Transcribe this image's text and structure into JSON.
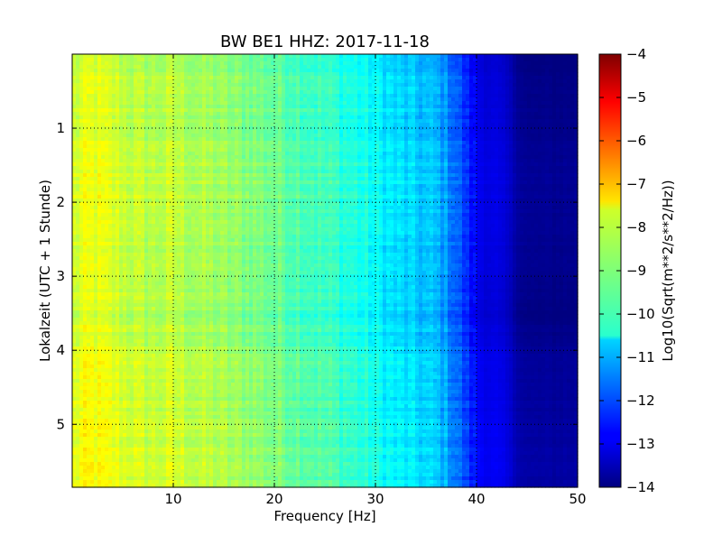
{
  "chart_data": {
    "type": "heatmap",
    "title": "BW BE1 HHZ: 2017-11-18",
    "xlabel": "Frequency [Hz]",
    "ylabel": "Lokalzeit (UTC + 1 Stunde)",
    "xlim": [
      0,
      50
    ],
    "ylim": [
      5.85,
      0.0
    ],
    "xticks": [
      10,
      20,
      30,
      40,
      50
    ],
    "yticks": [
      1,
      2,
      3,
      4,
      5
    ],
    "grid": true,
    "colormap": "jet",
    "colorbar": {
      "label": "Log10(Sqrt(m**2/s**2/Hz))",
      "min": -14,
      "max": -4,
      "ticks": [
        -4,
        -5,
        -6,
        -7,
        -8,
        -9,
        -10,
        -11,
        -12,
        -13,
        -14
      ]
    },
    "frequency_profile": {
      "freq_hz": [
        0,
        1,
        2,
        4,
        6,
        8,
        10,
        12,
        14,
        16,
        18,
        20,
        22,
        24,
        26,
        28,
        30,
        32,
        34,
        36,
        37,
        38,
        39,
        40,
        41,
        42,
        43,
        44,
        45,
        50
      ],
      "log10_psd": [
        -8.4,
        -8.2,
        -8.1,
        -8.3,
        -8.5,
        -8.6,
        -8.5,
        -8.7,
        -8.8,
        -9.0,
        -9.1,
        -9.3,
        -9.5,
        -9.7,
        -9.9,
        -10.1,
        -10.4,
        -10.7,
        -10.9,
        -11.1,
        -11.4,
        -11.9,
        -12.5,
        -13.0,
        -13.2,
        -13.2,
        -13.4,
        -13.8,
        -14.0,
        -14.0
      ]
    },
    "time_variation": {
      "note_times": [
        0.0,
        1.6,
        2.8,
        3.5,
        4.0,
        4.6,
        5.5,
        5.85
      ],
      "offset": [
        0.0,
        0.2,
        0.15,
        0.0,
        0.2,
        0.25,
        0.35,
        0.3
      ]
    }
  }
}
